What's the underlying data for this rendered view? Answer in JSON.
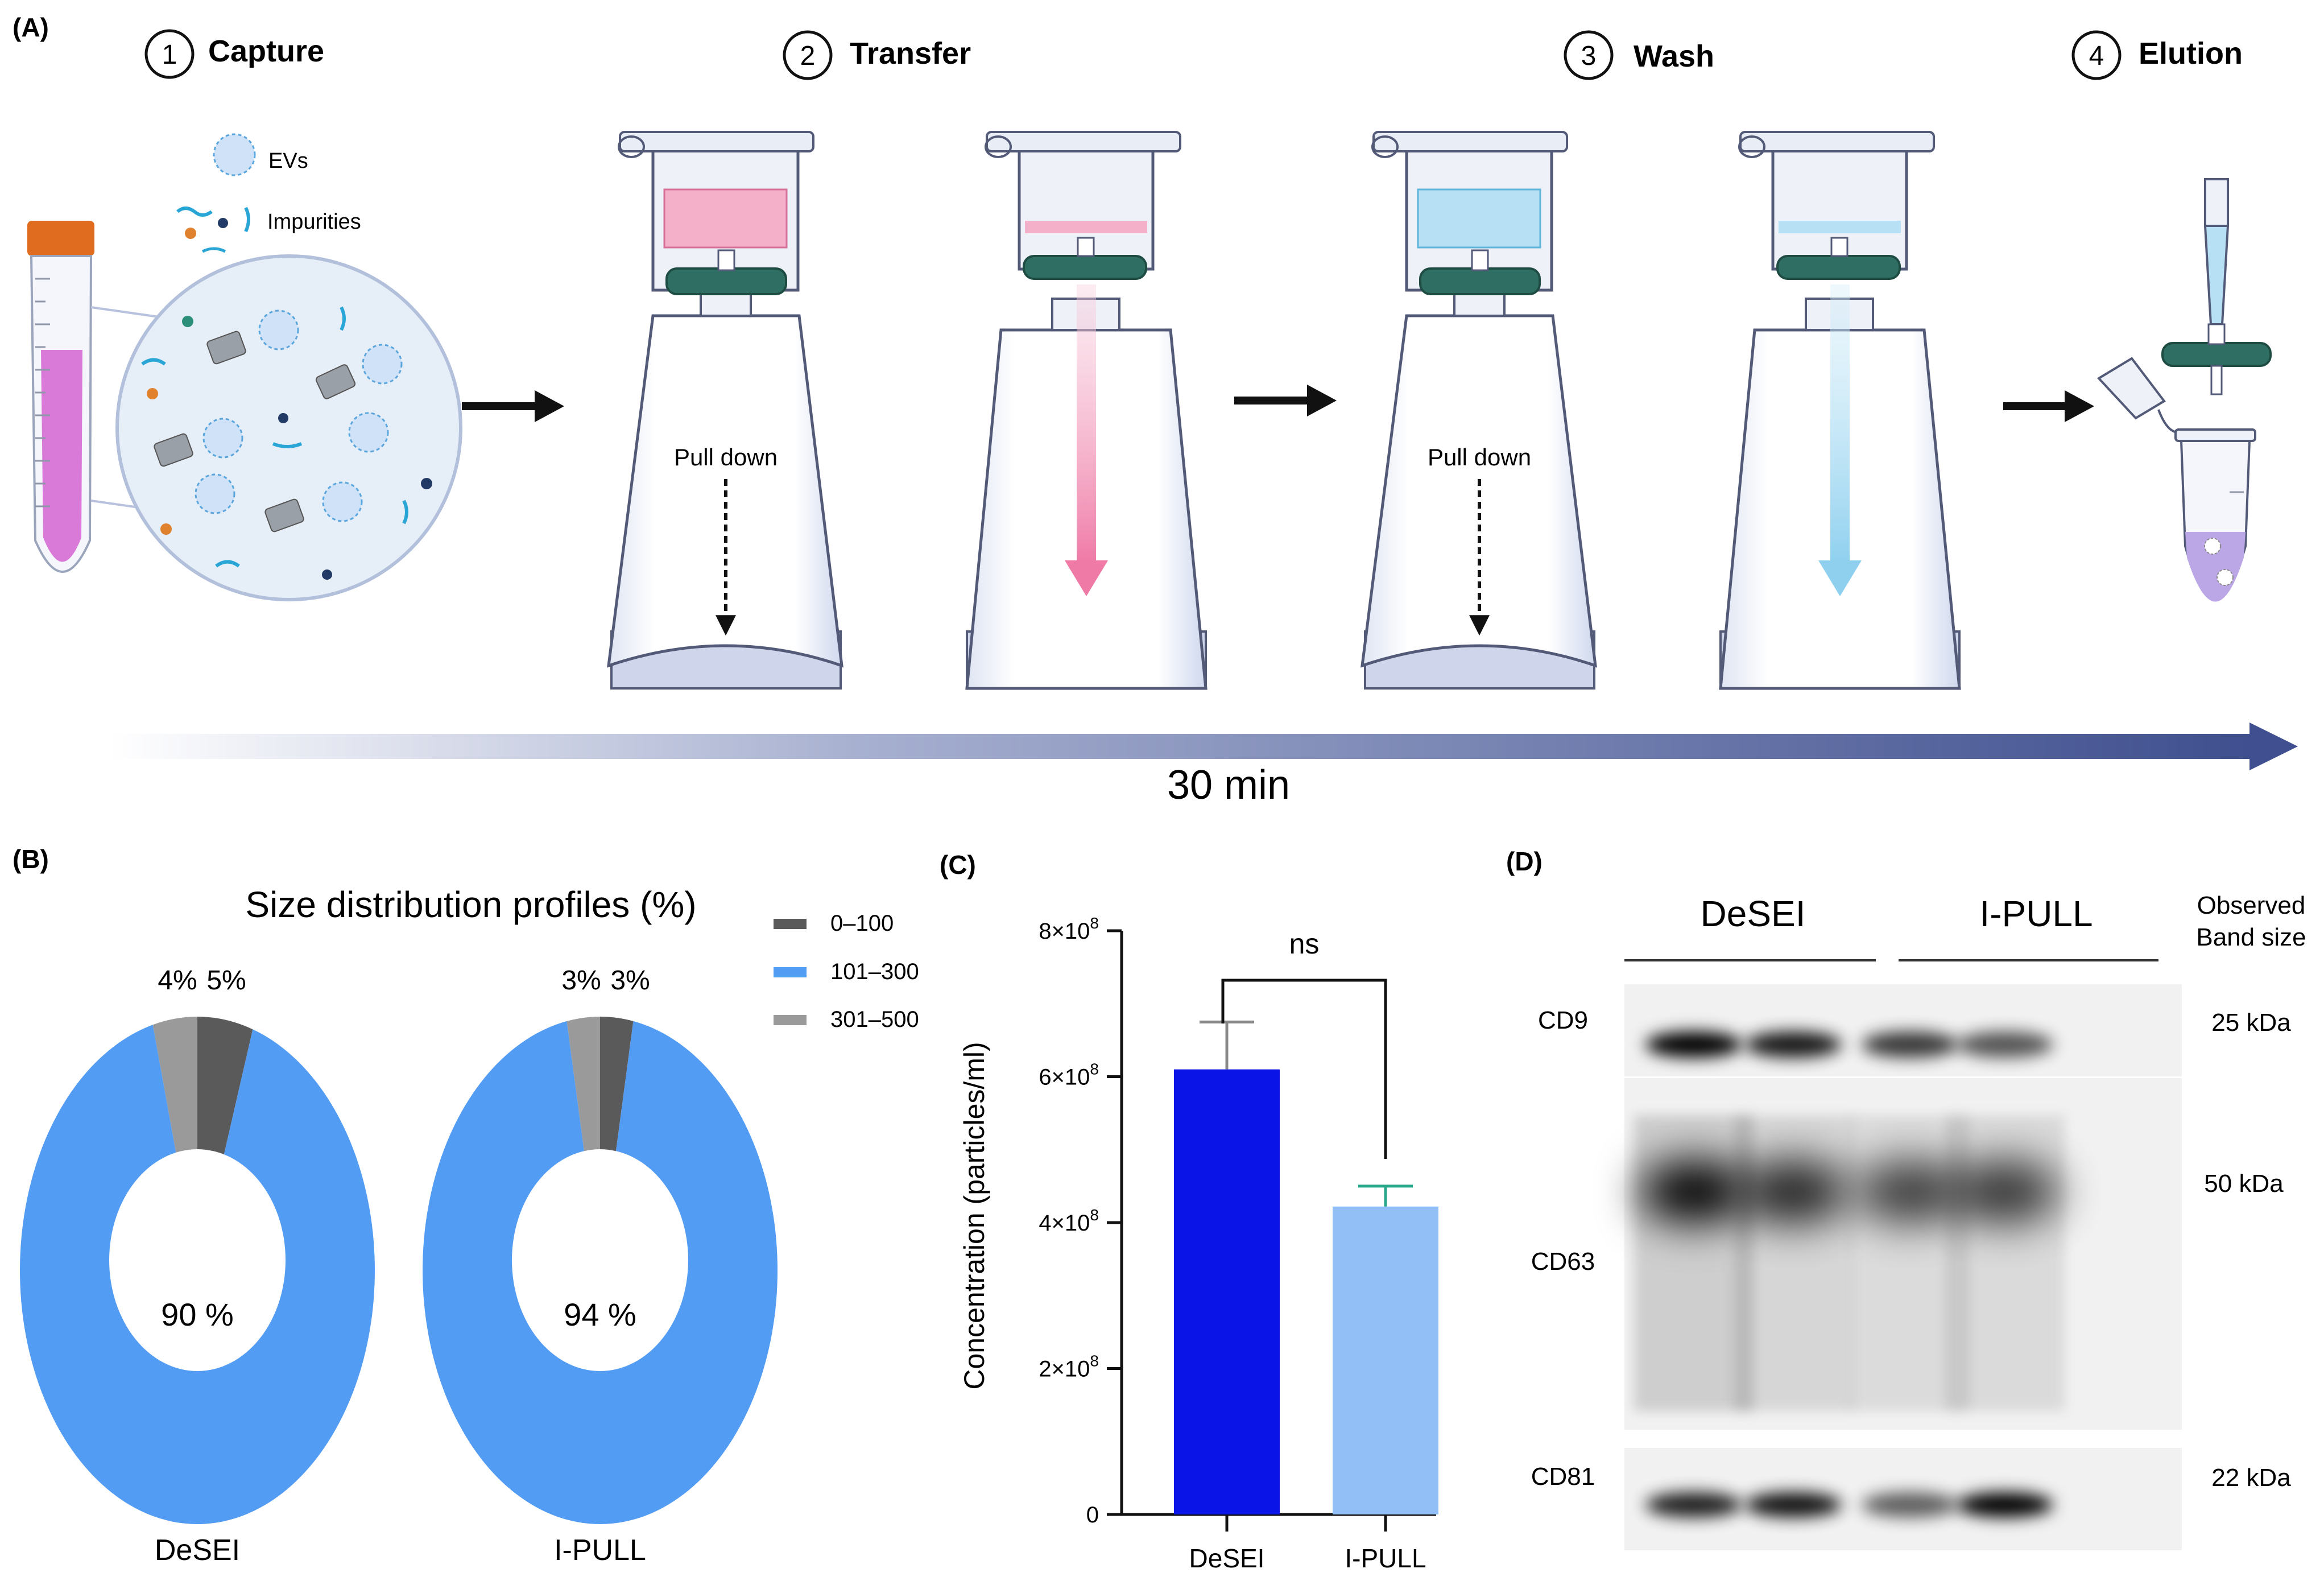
{
  "panels": {
    "a": "(A)",
    "b": "(B)",
    "c": "(C)",
    "d": "(D)"
  },
  "workflow": {
    "steps": [
      {
        "num": "1",
        "label": "Capture"
      },
      {
        "num": "2",
        "label": "Transfer"
      },
      {
        "num": "3",
        "label": "Wash"
      },
      {
        "num": "4",
        "label": "Elution"
      }
    ],
    "legend_evs": "EVs",
    "legend_impurities": "Impurities",
    "pull_down_1": "Pull down",
    "pull_down_2": "Pull down",
    "timeline": "30 min",
    "colors": {
      "capture_liquid": "#d97ad9",
      "transfer_liquid": "#f4b0c8",
      "wash_liquid": "#b7e0f4",
      "filter": "#2f6e62",
      "timeline": "#3f4f8f"
    }
  },
  "donut": {
    "title": "Size distribution profiles (%)",
    "legend": [
      {
        "label": "0–100",
        "color": "#5a5a5a"
      },
      {
        "label": "101–300",
        "color": "#539cf4"
      },
      {
        "label": "301–500",
        "color": "#9a9a9a"
      }
    ]
  },
  "chart_data": [
    {
      "type": "pie",
      "title": "Size distribution profiles (%)",
      "charts": [
        {
          "name": "DeSEI",
          "center_label": "90 %",
          "slices": [
            {
              "category": "0–100",
              "value": 5,
              "label": "5%"
            },
            {
              "category": "101–300",
              "value": 90,
              "label": "90 %"
            },
            {
              "category": "301–500",
              "value": 4,
              "label": "4%"
            }
          ]
        },
        {
          "name": "I-PULL",
          "center_label": "94 %",
          "slices": [
            {
              "category": "0–100",
              "value": 3,
              "label": "3%"
            },
            {
              "category": "101–300",
              "value": 94,
              "label": "94 %"
            },
            {
              "category": "301–500",
              "value": 3,
              "label": "3%"
            }
          ]
        }
      ]
    },
    {
      "type": "bar",
      "title": "",
      "categories": [
        "DeSEI",
        "I-PULL"
      ],
      "values": [
        610000000,
        422000000
      ],
      "errors": [
        65000000,
        28000000
      ],
      "colors": [
        "#0a14e6",
        "#92bff5"
      ],
      "error_colors": [
        "#888888",
        "#2aa98a"
      ],
      "ylabel": "Concentration (particles/ml)",
      "xlabel": "",
      "ylim": [
        0,
        800000000
      ],
      "ytick_labels": [
        {
          "value": 0,
          "base": "0",
          "exp": ""
        },
        {
          "value": 200000000,
          "base": "2×10",
          "exp": "8"
        },
        {
          "value": 400000000,
          "base": "4×10",
          "exp": "8"
        },
        {
          "value": 600000000,
          "base": "6×10",
          "exp": "8"
        },
        {
          "value": 800000000,
          "base": "8×10",
          "exp": "8"
        }
      ],
      "significance": "ns"
    }
  ],
  "blot": {
    "groups": [
      "DeSEI",
      "I-PULL"
    ],
    "observed_line1": "Observed",
    "observed_line2": "Band size",
    "bands": [
      {
        "marker": "CD9",
        "size": "25 kDa",
        "intensities": [
          0.95,
          0.82,
          0.65,
          0.5
        ]
      },
      {
        "marker": "CD63",
        "size": "50 kDa",
        "intensities": [
          1.0,
          0.75,
          0.6,
          0.65
        ]
      },
      {
        "marker": "CD81",
        "size": "22 kDa",
        "intensities": [
          0.78,
          0.85,
          0.45,
          1.0
        ]
      }
    ]
  }
}
